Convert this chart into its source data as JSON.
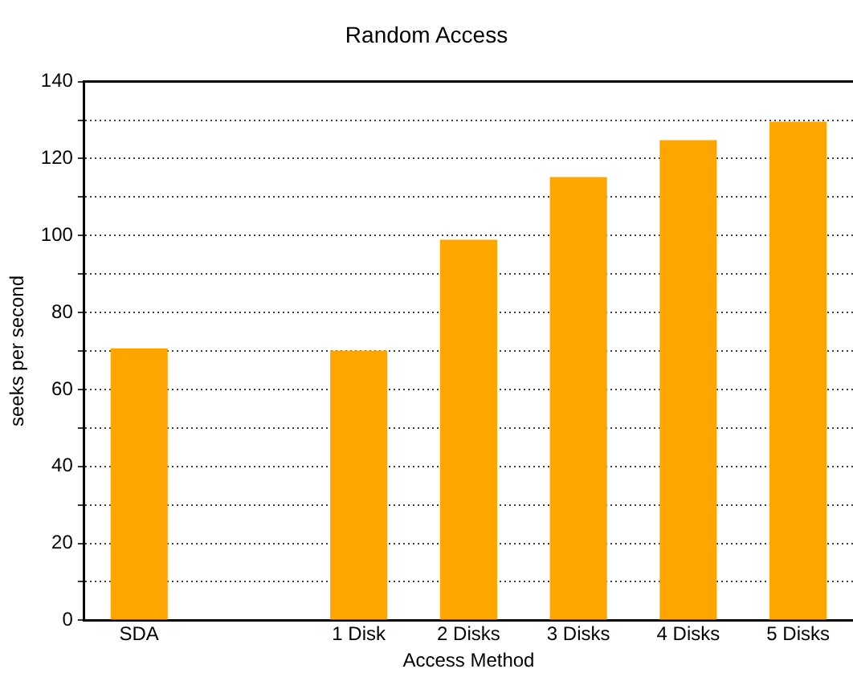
{
  "chart_data": {
    "type": "bar",
    "title": "Random Access",
    "xlabel": "Access Method",
    "ylabel": "seeks per second",
    "categories": [
      "SDA",
      null,
      "1 Disk",
      "2 Disks",
      "3 Disks",
      "4 Disks",
      "5 Disks"
    ],
    "values": [
      70.7,
      null,
      70.1,
      98.9,
      115.2,
      124.8,
      129.6
    ],
    "color": "#ffa500",
    "ylim": [
      0,
      140
    ],
    "yticks": [
      0,
      {
        "value": 10,
        "label": null
      },
      20,
      {
        "value": 30,
        "label": null
      },
      40,
      {
        "value": 50,
        "label": null
      },
      60,
      {
        "value": 70,
        "label": null
      },
      80,
      {
        "value": 90,
        "label": null
      },
      100,
      {
        "value": 110,
        "label": null
      },
      120,
      {
        "value": 130,
        "label": null
      },
      140
    ],
    "grid": "y",
    "legend": false,
    "line_style": "dotted"
  }
}
